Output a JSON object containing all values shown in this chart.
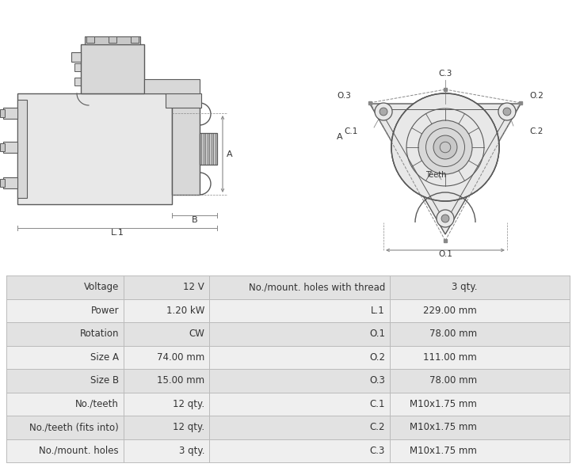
{
  "table_data": {
    "left_col1": [
      "Voltage",
      "Power",
      "Rotation",
      "Size A",
      "Size B",
      "No./teeth",
      "No./teeth (fits into)",
      "No./mount. holes"
    ],
    "left_col2": [
      "12 V",
      "1.20 kW",
      "CW",
      "74.00 mm",
      "15.00 mm",
      "12 qty.",
      "12 qty.",
      "3 qty."
    ],
    "right_col1": [
      "No./mount. holes with thread",
      "L.1",
      "O.1",
      "O.2",
      "O.3",
      "C.1",
      "C.2",
      "C.3"
    ],
    "right_col2": [
      "3 qty.",
      "229.00 mm",
      "78.00 mm",
      "111.00 mm",
      "78.00 mm",
      "M10x1.75 mm",
      "M10x1.75 mm",
      "M10x1.75 mm"
    ]
  },
  "bg_color": "#ffffff",
  "table_row_bg1": "#e2e2e2",
  "table_row_bg2": "#efefef",
  "table_border_color": "#bbbbbb",
  "line_color": "#5a5a5a",
  "dim_color": "#888888",
  "fill_light": "#e8e8e8",
  "fill_mid": "#d8d8d8",
  "fill_dark": "#c8c8c8"
}
